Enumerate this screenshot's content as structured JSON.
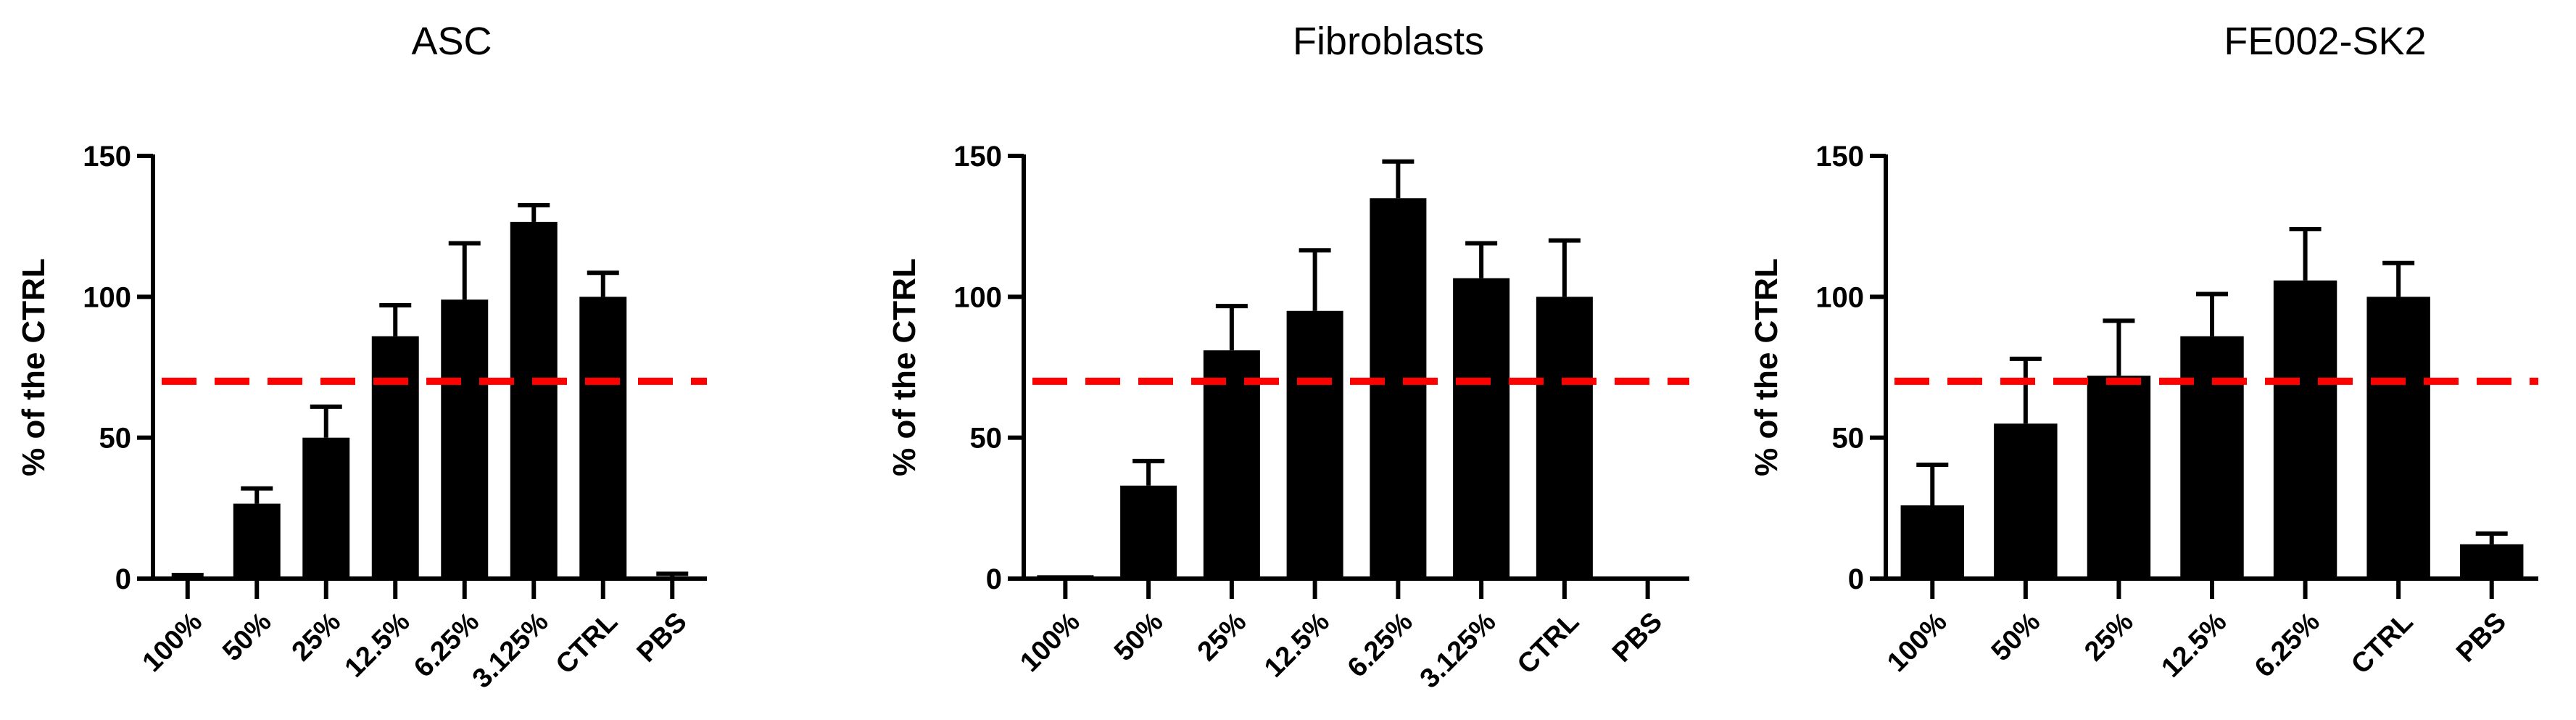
{
  "chart_data": [
    {
      "type": "bar",
      "title": "ASC",
      "ylabel": "% of the CTRL",
      "xlabel": "",
      "ylim": [
        0,
        150
      ],
      "yticks": [
        0,
        50,
        100,
        150
      ],
      "grid": false,
      "categories": [
        "100%",
        "50%",
        "25%",
        "12.5%",
        "6.25%",
        "3.125%",
        "CTRL",
        "PBS"
      ],
      "values": [
        0.7,
        26.6,
        50,
        86,
        99,
        126.6,
        100,
        0.7
      ],
      "error_upper": [
        1.3,
        32,
        61,
        97,
        119,
        132.5,
        108.5,
        1.7
      ],
      "reference_line": {
        "y": 70,
        "color": "#ff0000",
        "style": "dashed"
      },
      "bar_color": "#000000"
    },
    {
      "type": "bar",
      "title": "Fibroblasts",
      "ylabel": "% of the CTRL",
      "xlabel": "",
      "ylim": [
        0,
        150
      ],
      "yticks": [
        0,
        50,
        100,
        150
      ],
      "grid": false,
      "categories": [
        "100%",
        "50%",
        "25%",
        "12.5%",
        "6.25%",
        "3.125%",
        "CTRL",
        "PBS"
      ],
      "values": [
        1.2,
        33,
        81,
        95,
        135,
        106.6,
        100,
        0.7
      ],
      "error_upper": [
        1.2,
        41.7,
        96.7,
        116.5,
        148,
        119,
        120,
        0.7
      ],
      "reference_line": {
        "y": 70,
        "color": "#ff0000",
        "style": "dashed"
      },
      "bar_color": "#000000"
    },
    {
      "type": "bar",
      "title": "FE002-SK2",
      "ylabel": "% of the CTRL",
      "xlabel": "",
      "ylim": [
        0,
        150
      ],
      "yticks": [
        0,
        50,
        100,
        150
      ],
      "grid": false,
      "categories": [
        "100%",
        "50%",
        "25%",
        "12.5%",
        "6.25%",
        "CTRL",
        "PBS"
      ],
      "values": [
        26,
        55,
        72,
        86,
        105.8,
        100,
        12.2
      ],
      "error_upper": [
        40.4,
        78,
        91.5,
        101,
        124,
        112,
        16
      ],
      "reference_line": {
        "y": 70,
        "color": "#ff0000",
        "style": "dashed"
      },
      "bar_color": "#000000"
    }
  ]
}
